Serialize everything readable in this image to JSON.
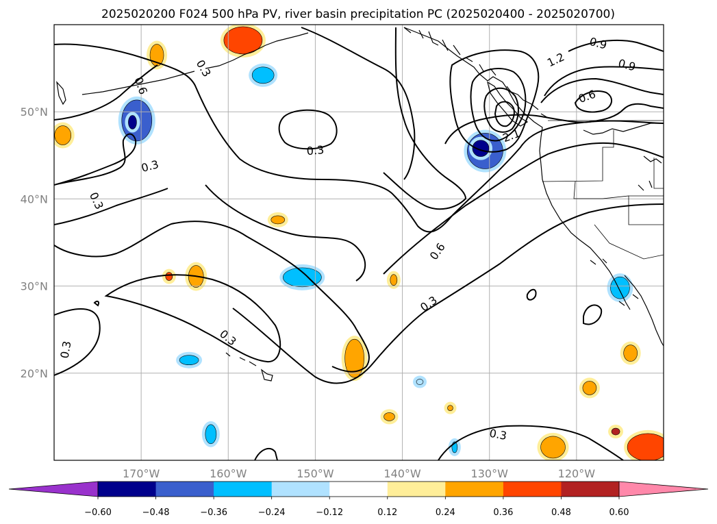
{
  "chart_data": {
    "type": "contour-map",
    "title": "2025020200 F024 500 hPa PV, river basin precipitation PC (2025020400 - 2025020700)",
    "map": {
      "lon_range": [
        -180,
        -110
      ],
      "lat_range": [
        10,
        60
      ],
      "x_ticks": [
        {
          "value": -170,
          "label": "170°W"
        },
        {
          "value": -160,
          "label": "160°W"
        },
        {
          "value": -150,
          "label": "150°W"
        },
        {
          "value": -140,
          "label": "140°W"
        },
        {
          "value": -130,
          "label": "130°W"
        },
        {
          "value": -120,
          "label": "120°W"
        }
      ],
      "y_ticks": [
        {
          "value": 20,
          "label": "20°N"
        },
        {
          "value": 30,
          "label": "30°N"
        },
        {
          "value": 40,
          "label": "40°N"
        },
        {
          "value": 50,
          "label": "50°N"
        }
      ],
      "grid": true
    },
    "contour_labels": [
      {
        "text": "0.9",
        "lon": -117.5,
        "lat": 57.9,
        "rot": 15
      },
      {
        "text": "1.2",
        "lon": -122.4,
        "lat": 56.0,
        "rot": -25
      },
      {
        "text": "0.9",
        "lon": -114.2,
        "lat": 55.4,
        "rot": 15
      },
      {
        "text": "0.6",
        "lon": -118.8,
        "lat": 51.8,
        "rot": -20
      },
      {
        "text": "2.1",
        "lon": -127.5,
        "lat": 47.3,
        "rot": -20
      },
      {
        "text": "0.3",
        "lon": -162.8,
        "lat": 55.0,
        "rot": 60
      },
      {
        "text": "0.6",
        "lon": -170.0,
        "lat": 53.0,
        "rot": 70
      },
      {
        "text": "0.3",
        "lon": -150.0,
        "lat": 45.6,
        "rot": -5
      },
      {
        "text": "0.3",
        "lon": -169.0,
        "lat": 43.8,
        "rot": -15
      },
      {
        "text": "0.3",
        "lon": -175.1,
        "lat": 39.8,
        "rot": 65
      },
      {
        "text": "0.6",
        "lon": -136.0,
        "lat": 34.0,
        "rot": -55
      },
      {
        "text": "0.3",
        "lon": -137.0,
        "lat": 28.0,
        "rot": -35
      },
      {
        "text": "0.3",
        "lon": -160.0,
        "lat": 24.1,
        "rot": 40
      },
      {
        "text": "0.3",
        "lon": -178.7,
        "lat": 22.7,
        "rot": -80
      },
      {
        "text": "0.3",
        "lon": -129.0,
        "lat": 13.0,
        "rot": 10
      }
    ],
    "colorbar": {
      "levels": [
        -0.6,
        -0.48,
        -0.36,
        -0.24,
        -0.12,
        0.12,
        0.24,
        0.36,
        0.48,
        0.6
      ],
      "tick_labels": [
        "−0.60",
        "−0.48",
        "−0.36",
        "−0.24",
        "−0.12",
        "0.12",
        "0.24",
        "0.36",
        "0.48",
        "0.60"
      ],
      "under_color": "#9932cc",
      "over_color": "#ff88aa",
      "colors": [
        "#00008b",
        "#3a5fcd",
        "#00bfff",
        "#b0e2ff",
        "#ffffff",
        "#ffee99",
        "#ffa500",
        "#ff4500",
        "#b22222"
      ]
    },
    "precip_blobs": [
      {
        "lon": -145.5,
        "lat": 21.7,
        "rx": 14,
        "ry": 28,
        "value": 0.33
      },
      {
        "lon": -163.7,
        "lat": 31.1,
        "rx": 11,
        "ry": 16,
        "value": 0.32
      },
      {
        "lon": -168.2,
        "lat": 56.5,
        "rx": 10,
        "ry": 16,
        "value": 0.3
      },
      {
        "lon": -179.0,
        "lat": 47.3,
        "rx": 12,
        "ry": 14,
        "value": 0.3
      },
      {
        "lon": -158.3,
        "lat": 58.2,
        "rx": 28,
        "ry": 20,
        "value": 0.42
      },
      {
        "lon": -166.8,
        "lat": 31.1,
        "rx": 5,
        "ry": 6,
        "value": 0.42
      },
      {
        "lon": -154.3,
        "lat": 37.6,
        "rx": 10,
        "ry": 6,
        "value": 0.3
      },
      {
        "lon": -141.0,
        "lat": 30.7,
        "rx": 5,
        "ry": 8,
        "value": 0.32
      },
      {
        "lon": -141.5,
        "lat": 15.0,
        "rx": 8,
        "ry": 6,
        "value": 0.28
      },
      {
        "lon": -134.5,
        "lat": 16.0,
        "rx": 4,
        "ry": 4,
        "value": 0.26
      },
      {
        "lon": -118.5,
        "lat": 18.3,
        "rx": 10,
        "ry": 10,
        "value": 0.32
      },
      {
        "lon": -113.8,
        "lat": 22.3,
        "rx": 10,
        "ry": 12,
        "value": 0.34
      },
      {
        "lon": -115.5,
        "lat": 13.3,
        "rx": 6,
        "ry": 5,
        "value": 0.55
      },
      {
        "lon": -111.8,
        "lat": 11.5,
        "rx": 30,
        "ry": 20,
        "value": 0.45
      },
      {
        "lon": -122.7,
        "lat": 11.5,
        "rx": 18,
        "ry": 16,
        "value": 0.32
      },
      {
        "lon": -170.5,
        "lat": 49.0,
        "rx": 22,
        "ry": 30,
        "value": -0.38
      },
      {
        "lon": -171.0,
        "lat": 48.8,
        "rx": 6,
        "ry": 10,
        "value": -0.5
      },
      {
        "lon": -130.5,
        "lat": 45.5,
        "rx": 26,
        "ry": 26,
        "value": -0.4
      },
      {
        "lon": -131.0,
        "lat": 45.8,
        "rx": 12,
        "ry": 12,
        "value": -0.52
      },
      {
        "lon": -151.5,
        "lat": 31.0,
        "rx": 28,
        "ry": 14,
        "value": -0.32
      },
      {
        "lon": -156.0,
        "lat": 54.2,
        "rx": 16,
        "ry": 12,
        "value": -0.3
      },
      {
        "lon": -164.5,
        "lat": 21.5,
        "rx": 14,
        "ry": 7,
        "value": -0.3
      },
      {
        "lon": -162.0,
        "lat": 13.0,
        "rx": 8,
        "ry": 14,
        "value": -0.32
      },
      {
        "lon": -134.0,
        "lat": 11.5,
        "rx": 4,
        "ry": 8,
        "value": -0.28
      },
      {
        "lon": -138.0,
        "lat": 19.0,
        "rx": 5,
        "ry": 4,
        "value": -0.22
      },
      {
        "lon": -115.0,
        "lat": 29.8,
        "rx": 14,
        "ry": 16,
        "value": -0.3
      }
    ]
  }
}
